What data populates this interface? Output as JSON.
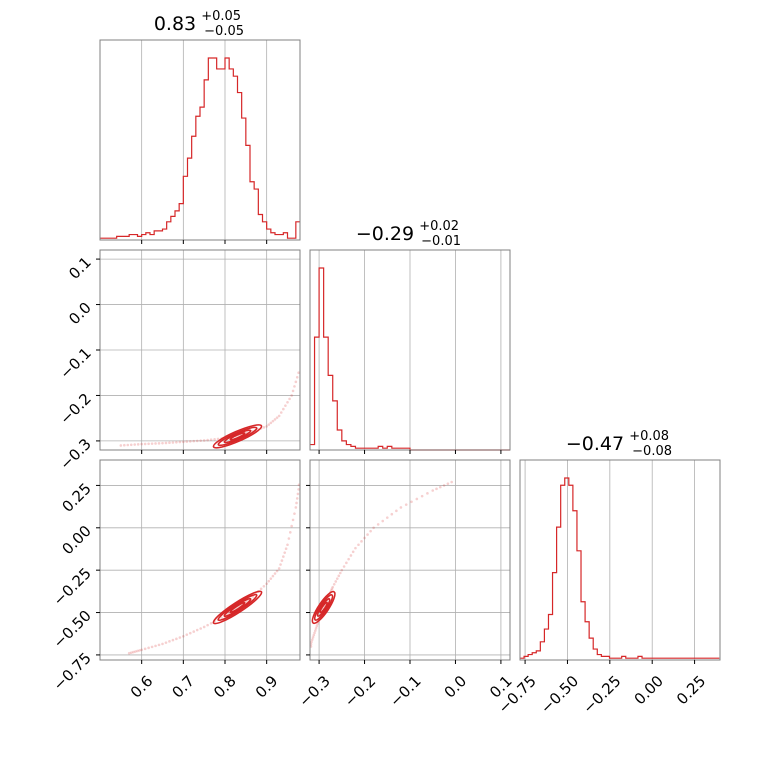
{
  "chart_data": {
    "type": "corner",
    "color": "#d62728",
    "parameters": [
      {
        "median": 0.83,
        "err_plus": 0.05,
        "err_minus": 0.05,
        "title_main": "0.83",
        "title_plus": "+0.05",
        "title_minus": "−0.05",
        "range": [
          0.5,
          0.98
        ],
        "ticks": [
          0.6,
          0.7,
          0.8,
          0.9
        ],
        "tick_labels": [
          "0.6",
          "0.7",
          "0.8",
          "0.9"
        ],
        "histogram": {
          "bin_start": 0.5,
          "bin_width": 0.01,
          "counts": [
            0.01,
            0.01,
            0.01,
            0.01,
            0.02,
            0.02,
            0.02,
            0.03,
            0.03,
            0.02,
            0.03,
            0.04,
            0.03,
            0.05,
            0.05,
            0.06,
            0.1,
            0.13,
            0.16,
            0.2,
            0.35,
            0.45,
            0.57,
            0.68,
            0.73,
            0.88,
            1.0,
            1.0,
            0.94,
            0.94,
            1.0,
            0.94,
            0.9,
            0.81,
            0.67,
            0.52,
            0.32,
            0.28,
            0.14,
            0.1,
            0.06,
            0.04,
            0.03,
            0.03,
            0.04,
            0.01,
            0.01,
            0.1
          ]
        }
      },
      {
        "median": -0.29,
        "err_plus": 0.02,
        "err_minus": 0.01,
        "title_main": "−0.29",
        "title_plus": "+0.02",
        "title_minus": "−0.01",
        "range": [
          -0.32,
          0.12
        ],
        "ticks": [
          -0.3,
          -0.2,
          -0.1,
          0.0,
          0.1
        ],
        "tick_labels": [
          "−0.3",
          "−0.2",
          "−0.1",
          "0.0",
          "0.1"
        ],
        "histogram": {
          "bin_start": -0.32,
          "bin_width": 0.01,
          "counts": [
            0.03,
            0.62,
            1.0,
            0.62,
            0.41,
            0.27,
            0.11,
            0.05,
            0.03,
            0.02,
            0.01,
            0.01,
            0.01,
            0.01,
            0.01,
            0.02,
            0.01,
            0.02,
            0.01,
            0.01,
            0.01,
            0.01,
            0.0,
            0.0,
            0.0,
            0.0,
            0.0,
            0.0,
            0.0,
            0.0,
            0.0,
            0.0,
            0.0,
            0.0,
            0.0,
            0.0,
            0.0,
            0.0,
            0.0,
            0.0,
            0.0,
            0.0,
            0.0,
            0.0
          ]
        }
      },
      {
        "median": -0.47,
        "err_plus": 0.08,
        "err_minus": 0.08,
        "title_main": "−0.47",
        "title_plus": "+0.08",
        "title_minus": "−0.08",
        "range": [
          -0.78,
          0.4
        ],
        "ticks": [
          -0.75,
          -0.5,
          -0.25,
          0.0,
          0.25
        ],
        "tick_labels": [
          "−0.75",
          "−0.50",
          "−0.25",
          "0.00",
          "0.25"
        ],
        "histogram": {
          "bin_start": -0.78,
          "bin_width": 0.024,
          "counts": [
            0.01,
            0.02,
            0.03,
            0.04,
            0.05,
            0.1,
            0.17,
            0.25,
            0.48,
            0.73,
            0.96,
            1.0,
            0.96,
            0.82,
            0.6,
            0.32,
            0.21,
            0.12,
            0.06,
            0.03,
            0.02,
            0.02,
            0.01,
            0.01,
            0.01,
            0.02,
            0.01,
            0.01,
            0.01,
            0.02,
            0.01,
            0.01,
            0.01,
            0.01,
            0.01,
            0.01,
            0.01,
            0.01,
            0.01,
            0.01,
            0.01,
            0.01,
            0.01,
            0.01,
            0.01,
            0.01,
            0.01,
            0.01,
            0.01
          ]
        }
      }
    ],
    "pair_curves": {
      "p1_vs_p0": {
        "x": [
          0.55,
          0.6,
          0.65,
          0.7,
          0.75,
          0.8,
          0.83,
          0.86,
          0.9,
          0.93,
          0.96,
          0.98
        ],
        "y": [
          -0.31,
          -0.307,
          -0.305,
          -0.302,
          -0.299,
          -0.294,
          -0.288,
          -0.281,
          -0.268,
          -0.245,
          -0.2,
          -0.14
        ]
      },
      "p2_vs_p0": {
        "x": [
          0.57,
          0.6,
          0.65,
          0.7,
          0.75,
          0.8,
          0.83,
          0.86,
          0.9,
          0.93,
          0.95,
          0.97,
          0.98
        ],
        "y": [
          -0.74,
          -0.72,
          -0.685,
          -0.64,
          -0.585,
          -0.52,
          -0.47,
          -0.42,
          -0.33,
          -0.24,
          -0.1,
          0.12,
          0.28
        ]
      },
      "p2_vs_p1": {
        "x": [
          -0.32,
          -0.31,
          -0.3,
          -0.29,
          -0.28,
          -0.27,
          -0.25,
          -0.22,
          -0.18,
          -0.12,
          -0.05,
          0.0
        ],
        "y": [
          -0.7,
          -0.62,
          -0.54,
          -0.47,
          -0.41,
          -0.35,
          -0.25,
          -0.12,
          0.0,
          0.12,
          0.22,
          0.28
        ]
      }
    }
  }
}
